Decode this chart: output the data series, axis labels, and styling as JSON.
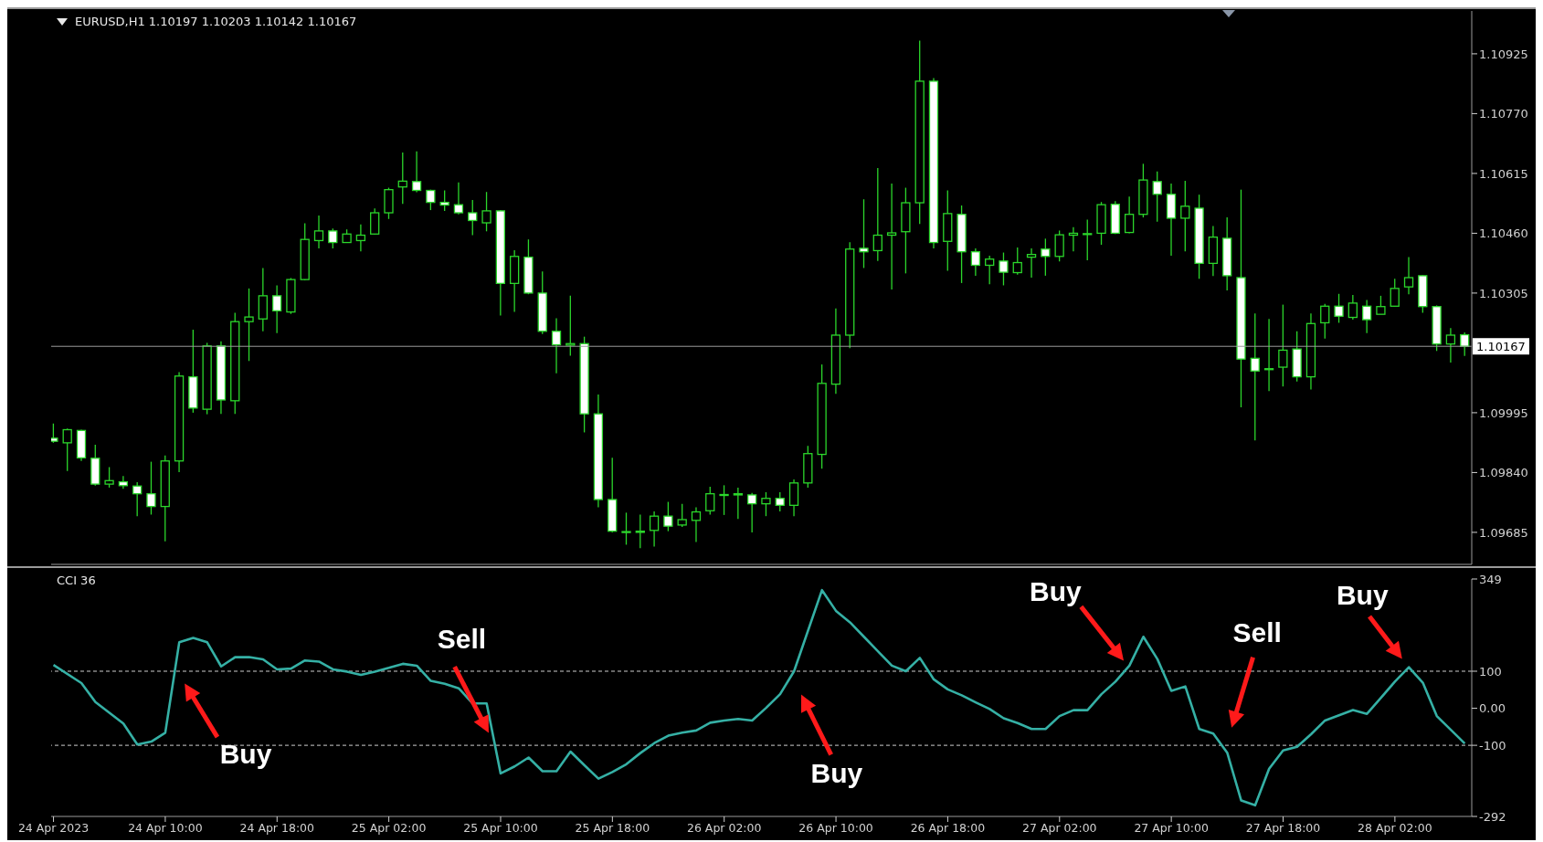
{
  "chart_data": [
    {
      "type": "candlestick",
      "title": "EURUSD,H1 1.10197 1.10203 1.10142 1.10167",
      "tick_labels": "y",
      "x": [
        "2023-04-24T02:00",
        "2023-04-24T03:00",
        "2023-04-24T04:00",
        "2023-04-24T05:00",
        "2023-04-24T06:00",
        "2023-04-24T07:00",
        "2023-04-24T08:00",
        "2023-04-24T09:00",
        "2023-04-24T10:00",
        "2023-04-24T11:00",
        "2023-04-24T12:00",
        "2023-04-24T13:00",
        "2023-04-24T14:00",
        "2023-04-24T15:00",
        "2023-04-24T16:00",
        "2023-04-24T17:00",
        "2023-04-24T18:00",
        "2023-04-24T19:00",
        "2023-04-24T20:00",
        "2023-04-24T21:00",
        "2023-04-24T22:00",
        "2023-04-24T23:00",
        "2023-04-25T00:00",
        "2023-04-25T01:00",
        "2023-04-25T02:00",
        "2023-04-25T03:00",
        "2023-04-25T04:00",
        "2023-04-25T05:00",
        "2023-04-25T06:00",
        "2023-04-25T07:00",
        "2023-04-25T08:00",
        "2023-04-25T09:00",
        "2023-04-25T10:00",
        "2023-04-25T11:00",
        "2023-04-25T12:00",
        "2023-04-25T13:00",
        "2023-04-25T14:00",
        "2023-04-25T15:00",
        "2023-04-25T16:00",
        "2023-04-25T17:00",
        "2023-04-25T18:00",
        "2023-04-25T19:00",
        "2023-04-25T20:00",
        "2023-04-25T21:00",
        "2023-04-25T22:00",
        "2023-04-25T23:00",
        "2023-04-26T00:00",
        "2023-04-26T01:00",
        "2023-04-26T02:00",
        "2023-04-26T03:00",
        "2023-04-26T04:00",
        "2023-04-26T05:00",
        "2023-04-26T06:00",
        "2023-04-26T07:00",
        "2023-04-26T08:00",
        "2023-04-26T09:00",
        "2023-04-26T10:00",
        "2023-04-26T11:00",
        "2023-04-26T12:00",
        "2023-04-26T13:00",
        "2023-04-26T14:00",
        "2023-04-26T15:00",
        "2023-04-26T16:00",
        "2023-04-26T17:00",
        "2023-04-26T18:00",
        "2023-04-26T19:00",
        "2023-04-26T20:00",
        "2023-04-26T21:00",
        "2023-04-26T22:00",
        "2023-04-26T23:00",
        "2023-04-27T00:00",
        "2023-04-27T01:00",
        "2023-04-27T02:00",
        "2023-04-27T03:00",
        "2023-04-27T04:00",
        "2023-04-27T05:00",
        "2023-04-27T06:00",
        "2023-04-27T07:00",
        "2023-04-27T08:00",
        "2023-04-27T09:00",
        "2023-04-27T10:00",
        "2023-04-27T11:00",
        "2023-04-27T12:00",
        "2023-04-27T13:00",
        "2023-04-27T14:00",
        "2023-04-27T15:00",
        "2023-04-27T16:00",
        "2023-04-27T17:00",
        "2023-04-27T18:00",
        "2023-04-27T19:00",
        "2023-04-27T20:00",
        "2023-04-27T21:00",
        "2023-04-27T22:00",
        "2023-04-27T23:00",
        "2023-04-28T00:00",
        "2023-04-28T01:00",
        "2023-04-28T02:00",
        "2023-04-28T03:00",
        "2023-04-28T04:00",
        "2023-04-28T05:00",
        "2023-04-28T06:00",
        "2023-04-28T07:00"
      ],
      "xlim": [
        "2023-04-24T01:50",
        "2023-04-28T07:30"
      ],
      "ylim": [
        1.09602,
        1.11036
      ],
      "yticks": [
        1.10925,
        {
          "value": 1.1077,
          "label": "1.10770"
        },
        1.10615,
        {
          "value": 1.1046,
          "label": "1.10460"
        },
        1.10305,
        1.09995,
        {
          "value": 1.0984,
          "label": "1.09840"
        },
        1.09685
      ],
      "ref_lines": [
        {
          "axis": "y",
          "value": 1.10167,
          "label": "1.10167",
          "color": "#9a9a9a",
          "line_style": "solid"
        }
      ],
      "series": [
        {
          "color": "#2bd62b",
          "ohlc": [
            [
              1.09929,
              1.09967,
              1.09917,
              1.09921
            ],
            [
              1.09917,
              1.09954,
              1.09844,
              1.09951
            ],
            [
              1.09949,
              1.09951,
              1.0987,
              1.09878
            ],
            [
              1.09877,
              1.09912,
              1.09806,
              1.0981
            ],
            [
              1.0981,
              1.09854,
              1.09801,
              1.09819
            ],
            [
              1.09816,
              1.09831,
              1.09798,
              1.09806
            ],
            [
              1.09805,
              1.09815,
              1.09727,
              1.09785
            ],
            [
              1.09785,
              1.09868,
              1.09731,
              1.09752
            ],
            [
              1.09752,
              1.09884,
              1.09662,
              1.0987
            ],
            [
              1.0987,
              1.101,
              1.09841,
              1.1009
            ],
            [
              1.10088,
              1.1021,
              1.09995,
              1.10007
            ],
            [
              1.10004,
              1.10176,
              1.09991,
              1.10168
            ],
            [
              1.10168,
              1.1018,
              1.09992,
              1.10028
            ],
            [
              1.10026,
              1.10254,
              1.09992,
              1.10231
            ],
            [
              1.10231,
              1.10317,
              1.10129,
              1.10243
            ],
            [
              1.10238,
              1.1037,
              1.10206,
              1.10298
            ],
            [
              1.10298,
              1.10325,
              1.10201,
              1.10259
            ],
            [
              1.10256,
              1.10344,
              1.10251,
              1.1034
            ],
            [
              1.1034,
              1.10486,
              1.10338,
              1.10444
            ],
            [
              1.10441,
              1.10506,
              1.10421,
              1.10466
            ],
            [
              1.10466,
              1.10472,
              1.10421,
              1.10436
            ],
            [
              1.10436,
              1.1047,
              1.10435,
              1.10458
            ],
            [
              1.10441,
              1.10483,
              1.10413,
              1.10455
            ],
            [
              1.10458,
              1.10524,
              1.10456,
              1.10513
            ],
            [
              1.10513,
              1.10578,
              1.10497,
              1.10573
            ],
            [
              1.1058,
              1.10669,
              1.10536,
              1.10595
            ],
            [
              1.10594,
              1.10672,
              1.10566,
              1.10571
            ],
            [
              1.10571,
              1.10573,
              1.1052,
              1.1054
            ],
            [
              1.1054,
              1.10571,
              1.10518,
              1.10533
            ],
            [
              1.10534,
              1.10592,
              1.10509,
              1.10513
            ],
            [
              1.10513,
              1.10546,
              1.10455,
              1.10493
            ],
            [
              1.10487,
              1.10567,
              1.10465,
              1.10518
            ],
            [
              1.10518,
              1.1052,
              1.10247,
              1.1033
            ],
            [
              1.1033,
              1.10416,
              1.10256,
              1.104
            ],
            [
              1.10398,
              1.10444,
              1.10302,
              1.10305
            ],
            [
              1.10305,
              1.10361,
              1.10199,
              1.10206
            ],
            [
              1.10206,
              1.1024,
              1.10097,
              1.10171
            ],
            [
              1.1017,
              1.10298,
              1.10143,
              1.10174
            ],
            [
              1.10174,
              1.10192,
              1.09944,
              1.09992
            ],
            [
              1.09992,
              1.10042,
              1.0975,
              1.0977
            ],
            [
              1.0977,
              1.09878,
              1.09685,
              1.09688
            ],
            [
              1.09687,
              1.09736,
              1.09653,
              1.09685
            ],
            [
              1.09685,
              1.09731,
              1.09644,
              1.09688
            ],
            [
              1.0969,
              1.09739,
              1.09648,
              1.09727
            ],
            [
              1.09727,
              1.09764,
              1.09688,
              1.09701
            ],
            [
              1.09704,
              1.09759,
              1.09699,
              1.09718
            ],
            [
              1.09716,
              1.0975,
              1.0966,
              1.09738
            ],
            [
              1.09741,
              1.09803,
              1.09731,
              1.09785
            ],
            [
              1.09781,
              1.09807,
              1.0973,
              1.09783
            ],
            [
              1.09785,
              1.09801,
              1.0972,
              1.09782
            ],
            [
              1.09782,
              1.09787,
              1.09685,
              1.09759
            ],
            [
              1.09759,
              1.09789,
              1.09727,
              1.09773
            ],
            [
              1.09773,
              1.09789,
              1.09739,
              1.09755
            ],
            [
              1.09755,
              1.09822,
              1.09727,
              1.09813
            ],
            [
              1.09813,
              1.09909,
              1.09801,
              1.09889
            ],
            [
              1.09887,
              1.1012,
              1.0985,
              1.10071
            ],
            [
              1.10069,
              1.10265,
              1.10044,
              1.10196
            ],
            [
              1.10196,
              1.10437,
              1.10162,
              1.10419
            ],
            [
              1.10421,
              1.10548,
              1.1037,
              1.10412
            ],
            [
              1.10415,
              1.10629,
              1.10388,
              1.10455
            ],
            [
              1.10455,
              1.10589,
              1.10314,
              1.10461
            ],
            [
              1.10464,
              1.10578,
              1.10356,
              1.10539
            ],
            [
              1.10539,
              1.10959,
              1.10484,
              1.10854
            ],
            [
              1.10854,
              1.10862,
              1.10421,
              1.10436
            ],
            [
              1.10439,
              1.10571,
              1.10363,
              1.10511
            ],
            [
              1.10509,
              1.10532,
              1.10331,
              1.10412
            ],
            [
              1.10412,
              1.10421,
              1.1035,
              1.10377
            ],
            [
              1.10377,
              1.10402,
              1.10328,
              1.10393
            ],
            [
              1.10388,
              1.1041,
              1.10325,
              1.10359
            ],
            [
              1.10358,
              1.10423,
              1.10353,
              1.10384
            ],
            [
              1.10398,
              1.10421,
              1.10345,
              1.10405
            ],
            [
              1.10419,
              1.10446,
              1.1035,
              1.104
            ],
            [
              1.104,
              1.10467,
              1.10387,
              1.10456
            ],
            [
              1.10455,
              1.10476,
              1.10413,
              1.1046
            ],
            [
              1.10457,
              1.10495,
              1.1039,
              1.10459
            ],
            [
              1.1046,
              1.10541,
              1.1043,
              1.10534
            ],
            [
              1.10535,
              1.10543,
              1.10458,
              1.1046
            ],
            [
              1.10462,
              1.10555,
              1.1046,
              1.10509
            ],
            [
              1.10509,
              1.1064,
              1.10501,
              1.10598
            ],
            [
              1.10594,
              1.1062,
              1.1049,
              1.10561
            ],
            [
              1.10561,
              1.10589,
              1.10402,
              1.10499
            ],
            [
              1.10499,
              1.10596,
              1.10413,
              1.1053
            ],
            [
              1.10525,
              1.1056,
              1.10342,
              1.10382
            ],
            [
              1.10382,
              1.10479,
              1.10349,
              1.1045
            ],
            [
              1.10447,
              1.10501,
              1.10312,
              1.1035
            ],
            [
              1.10345,
              1.10573,
              1.10009,
              1.10134
            ],
            [
              1.10136,
              1.10252,
              1.09923,
              1.10103
            ],
            [
              1.10109,
              1.10238,
              1.10051,
              1.10107
            ],
            [
              1.10113,
              1.10275,
              1.10063,
              1.10157
            ],
            [
              1.1016,
              1.10206,
              1.10076,
              1.10088
            ],
            [
              1.10088,
              1.10252,
              1.10055,
              1.10226
            ],
            [
              1.10228,
              1.10277,
              1.10187,
              1.10271
            ],
            [
              1.10271,
              1.10303,
              1.10228,
              1.10245
            ],
            [
              1.10242,
              1.103,
              1.10236,
              1.10279
            ],
            [
              1.10271,
              1.10287,
              1.10201,
              1.10236
            ],
            [
              1.1025,
              1.10298,
              1.1025,
              1.1027
            ],
            [
              1.10271,
              1.10342,
              1.1027,
              1.10317
            ],
            [
              1.10321,
              1.10398,
              1.10302,
              1.10345
            ],
            [
              1.1035,
              1.10351,
              1.10254,
              1.1027
            ],
            [
              1.1027,
              1.10273,
              1.10155,
              1.10173
            ],
            [
              1.10173,
              1.10214,
              1.10125,
              1.10196
            ],
            [
              1.10197,
              1.10203,
              1.10142,
              1.10167
            ]
          ]
        }
      ]
    },
    {
      "type": "line",
      "title": "CCI 36",
      "xlim": [
        "2023-04-24T01:50",
        "2023-04-28T07:30"
      ],
      "xticks": [
        {
          "value": "2023-04-24T02:00",
          "label": "24 Apr 2023"
        },
        {
          "value": "2023-04-24T10:00",
          "label": "24 Apr 10:00"
        },
        {
          "value": "2023-04-24T18:00",
          "label": "24 Apr 18:00"
        },
        {
          "value": "2023-04-25T02:00",
          "label": "25 Apr 02:00"
        },
        {
          "value": "2023-04-25T10:00",
          "label": "25 Apr 10:00"
        },
        {
          "value": "2023-04-25T18:00",
          "label": "25 Apr 18:00"
        },
        {
          "value": "2023-04-26T02:00",
          "label": "26 Apr 02:00"
        },
        {
          "value": "2023-04-26T10:00",
          "label": "26 Apr 10:00"
        },
        {
          "value": "2023-04-26T18:00",
          "label": "26 Apr 18:00"
        },
        {
          "value": "2023-04-27T02:00",
          "label": "27 Apr 02:00"
        },
        {
          "value": "2023-04-27T10:00",
          "label": "27 Apr 10:00"
        },
        {
          "value": "2023-04-27T18:00",
          "label": "27 Apr 18:00"
        },
        {
          "value": "2023-04-28T02:00",
          "label": "28 Apr 02:00"
        }
      ],
      "ylim": [
        -292,
        349
      ],
      "yticks": [
        -292,
        -100,
        {
          "value": 0,
          "label": "0.00"
        },
        100,
        349
      ],
      "ref_lines": [
        {
          "axis": "y",
          "value": 100,
          "color": "#cfcfcf",
          "line_style": "dashed"
        },
        {
          "axis": "y",
          "value": -100,
          "color": "#cfcfcf",
          "line_style": "dashed"
        }
      ],
      "annotations": [
        "Buy",
        "Sell",
        "Buy",
        "Buy",
        "Sell",
        "Buy"
      ],
      "series": [
        {
          "color": "#35b0a5",
          "x": [
            "2023-04-24T02:00",
            "2023-04-24T04:00",
            "2023-04-24T05:00",
            "2023-04-24T07:00",
            "2023-04-24T08:00",
            "2023-04-24T09:00",
            "2023-04-24T10:00",
            "2023-04-24T11:00",
            "2023-04-24T12:00",
            "2023-04-24T13:00",
            "2023-04-24T14:00",
            "2023-04-24T15:00",
            "2023-04-24T16:00",
            "2023-04-24T17:00",
            "2023-04-24T18:00",
            "2023-04-24T19:00",
            "2023-04-24T20:00",
            "2023-04-24T21:00",
            "2023-04-24T22:00",
            "2023-04-24T23:00",
            "2023-04-25T00:00",
            "2023-04-25T01:00",
            "2023-04-25T02:00",
            "2023-04-25T03:00",
            "2023-04-25T04:00",
            "2023-04-25T05:00",
            "2023-04-25T06:00",
            "2023-04-25T07:00",
            "2023-04-25T08:00",
            "2023-04-25T09:00",
            "2023-04-25T10:00",
            "2023-04-25T11:00",
            "2023-04-25T12:00",
            "2023-04-25T13:00",
            "2023-04-25T14:00",
            "2023-04-25T15:00",
            "2023-04-25T16:00",
            "2023-04-25T17:00",
            "2023-04-25T18:00",
            "2023-04-25T19:00",
            "2023-04-25T20:00",
            "2023-04-25T21:00",
            "2023-04-25T22:00",
            "2023-04-25T23:00",
            "2023-04-26T00:00",
            "2023-04-26T01:00",
            "2023-04-26T02:00",
            "2023-04-26T03:00",
            "2023-04-26T04:00",
            "2023-04-26T05:00",
            "2023-04-26T06:00",
            "2023-04-26T07:00",
            "2023-04-26T09:00",
            "2023-04-26T10:00",
            "2023-04-26T11:00",
            "2023-04-26T12:00",
            "2023-04-26T13:00",
            "2023-04-26T14:00",
            "2023-04-26T15:00",
            "2023-04-26T16:00",
            "2023-04-26T17:00",
            "2023-04-26T18:00",
            "2023-04-26T19:00",
            "2023-04-26T20:00",
            "2023-04-26T21:00",
            "2023-04-26T22:00",
            "2023-04-26T23:00",
            "2023-04-27T00:00",
            "2023-04-27T01:00",
            "2023-04-27T02:00",
            "2023-04-27T03:00",
            "2023-04-27T04:00",
            "2023-04-27T05:00",
            "2023-04-27T06:00",
            "2023-04-27T07:00",
            "2023-04-27T08:00",
            "2023-04-27T09:00",
            "2023-04-27T10:00",
            "2023-04-27T11:00",
            "2023-04-27T12:00",
            "2023-04-27T13:00",
            "2023-04-27T14:00",
            "2023-04-27T15:00",
            "2023-04-27T16:00",
            "2023-04-27T17:00",
            "2023-04-27T18:00",
            "2023-04-27T19:00",
            "2023-04-27T20:00",
            "2023-04-27T21:00",
            "2023-04-27T22:00",
            "2023-04-27T23:00",
            "2023-04-28T00:00",
            "2023-04-28T01:00",
            "2023-04-28T02:00",
            "2023-04-28T03:00",
            "2023-04-28T04:00",
            "2023-04-28T05:00",
            "2023-04-28T06:00",
            "2023-04-28T07:00"
          ],
          "values": [
            117,
            68,
            17,
            -41,
            -98,
            -90,
            -66,
            178,
            190,
            178,
            113,
            138,
            138,
            132,
            105,
            107,
            129,
            126,
            105,
            99,
            90,
            99,
            109,
            120,
            115,
            74,
            66,
            54,
            13,
            13,
            -176,
            -157,
            -133,
            -170,
            -170,
            -117,
            -154,
            -190,
            -172,
            -151,
            -121,
            -94,
            -74,
            -66,
            -60,
            -39,
            -33,
            -29,
            -33,
            1,
            38,
            100,
            319,
            263,
            232,
            193,
            154,
            115,
            100,
            136,
            78,
            51,
            35,
            16,
            -2,
            -27,
            -40,
            -56,
            -56,
            -21,
            -5,
            -5,
            38,
            72,
            115,
            193,
            133,
            47,
            59,
            -56,
            -68,
            -120,
            -249,
            -262,
            -163,
            -114,
            -104,
            -70,
            -33,
            -19,
            -5,
            -15,
            28,
            72,
            111,
            69,
            -21,
            -58,
            -95
          ]
        }
      ]
    }
  ]
}
